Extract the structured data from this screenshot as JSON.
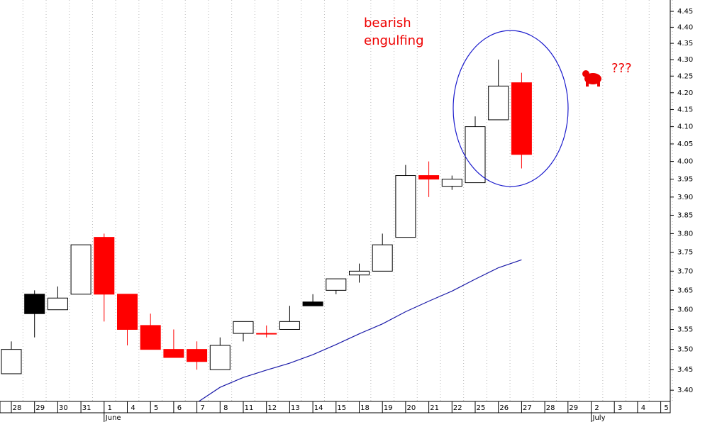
{
  "chart_data": {
    "type": "candlestick",
    "categories": [
      "28",
      "29",
      "30",
      "31",
      "1",
      "4",
      "5",
      "6",
      "7",
      "8",
      "11",
      "12",
      "13",
      "14",
      "15",
      "18",
      "19",
      "20",
      "21",
      "22",
      "25",
      "26",
      "27",
      "28",
      "29",
      "2",
      "3",
      "4",
      "5"
    ],
    "months": [
      {
        "name": "June",
        "start": 4
      },
      {
        "name": "July",
        "start": 25
      }
    ],
    "open": [
      3.44,
      3.64,
      3.6,
      3.64,
      3.79,
      3.64,
      3.56,
      3.5,
      3.5,
      3.45,
      3.54,
      3.54,
      3.55,
      3.62,
      3.65,
      3.69,
      3.7,
      3.79,
      3.96,
      3.93,
      3.94,
      4.12,
      4.23,
      null,
      null,
      null,
      null,
      null,
      null
    ],
    "high": [
      3.52,
      3.65,
      3.66,
      3.77,
      3.8,
      3.64,
      3.59,
      3.55,
      3.52,
      3.53,
      3.57,
      3.56,
      3.61,
      3.64,
      3.68,
      3.72,
      3.8,
      3.99,
      4.0,
      3.96,
      4.13,
      4.3,
      4.26,
      null,
      null,
      null,
      null,
      null,
      null
    ],
    "low": [
      3.44,
      3.53,
      3.6,
      3.64,
      3.57,
      3.51,
      3.5,
      3.48,
      3.45,
      3.45,
      3.52,
      3.53,
      3.55,
      3.61,
      3.64,
      3.67,
      3.7,
      3.79,
      3.9,
      3.92,
      3.94,
      4.12,
      3.98,
      null,
      null,
      null,
      null,
      null,
      null
    ],
    "close": [
      3.5,
      3.59,
      3.63,
      3.77,
      3.64,
      3.55,
      3.5,
      3.48,
      3.47,
      3.51,
      3.57,
      3.54,
      3.57,
      3.61,
      3.68,
      3.7,
      3.77,
      3.96,
      3.95,
      3.95,
      4.1,
      4.22,
      4.02,
      null,
      null,
      null,
      null,
      null,
      null
    ],
    "candle_colors": [
      "white",
      "black",
      "white",
      "white",
      "red",
      "red",
      "red",
      "red",
      "red",
      "white",
      "white",
      "red",
      "white",
      "black",
      "white",
      "white",
      "white",
      "white",
      "red",
      "white",
      "white",
      "white",
      "red",
      null,
      null,
      null,
      null,
      null,
      null
    ],
    "line": {
      "color": "#1a1aa8",
      "values": [
        null,
        null,
        null,
        null,
        null,
        null,
        null,
        null,
        3.37,
        3.407,
        3.431,
        3.449,
        3.466,
        3.487,
        3.512,
        3.539,
        3.564,
        3.595,
        3.622,
        3.648,
        3.679,
        3.709,
        3.73,
        null,
        null,
        null,
        null,
        null,
        null
      ]
    },
    "ylim": [
      3.373,
      4.486
    ],
    "log_scale": true,
    "yticks": [
      {
        "value": 3.4,
        "label": "3.40"
      },
      3.45,
      {
        "value": 3.5,
        "label": "3.50"
      },
      3.55,
      {
        "value": 3.6,
        "label": "3.60"
      },
      3.65,
      {
        "value": 3.7,
        "label": "3.70"
      },
      3.75,
      {
        "value": 3.8,
        "label": "3.80"
      },
      3.85,
      {
        "value": 3.9,
        "label": "3.90"
      },
      3.95,
      {
        "value": 4.0,
        "label": "4.00"
      },
      4.05,
      {
        "value": 4.1,
        "label": "4.10"
      },
      4.15,
      {
        "value": 4.2,
        "label": "4.20"
      },
      4.25,
      {
        "value": 4.3,
        "label": "4.30"
      },
      4.35,
      {
        "value": 4.4,
        "label": "4.40"
      },
      4.45
    ],
    "annotations": [
      "bearish",
      "engulfing",
      "???"
    ]
  }
}
